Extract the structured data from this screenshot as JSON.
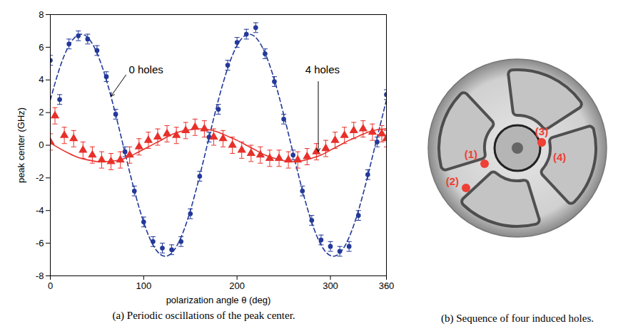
{
  "chart_data": {
    "type": "scatter",
    "caption": "(a) Periodic oscillations of the peak center.",
    "x_label": "polarization angle θ (deg)",
    "y_label": "peak center (GHz)",
    "xlim": [
      0,
      360
    ],
    "xticks": [
      0,
      100,
      200,
      300,
      360
    ],
    "ylim": [
      -8,
      8
    ],
    "yticks": [
      -8,
      -6,
      -4,
      -2,
      0,
      2,
      4,
      6,
      8
    ],
    "grid": false,
    "series": [
      {
        "name": "0 holes",
        "color": "#23399a",
        "marker": "circle",
        "line_style": "dashed",
        "x": [
          0,
          10,
          20,
          30,
          40,
          50,
          60,
          70,
          80,
          90,
          100,
          110,
          120,
          130,
          140,
          150,
          160,
          170,
          180,
          190,
          200,
          210,
          220,
          230,
          240,
          250,
          260,
          270,
          280,
          290,
          300,
          310,
          320,
          330,
          340,
          350,
          360
        ],
        "values": [
          5.2,
          2.8,
          6.2,
          6.7,
          6.5,
          5.8,
          4.2,
          1.9,
          -0.4,
          -2.8,
          -4.7,
          -5.9,
          -6.3,
          -6.4,
          -5.9,
          -4.2,
          -1.9,
          0.5,
          2.2,
          4.9,
          6.3,
          6.8,
          7.2,
          5.6,
          3.9,
          1.6,
          -0.6,
          -2.8,
          -4.6,
          -5.8,
          -6.2,
          -6.5,
          -6.2,
          -4.3,
          -1.8,
          0.2,
          3.1
        ],
        "errors": [
          0.3,
          0.3,
          0.3,
          0.3,
          0.3,
          0.3,
          0.3,
          0.3,
          0.3,
          0.3,
          0.3,
          0.3,
          0.3,
          0.3,
          0.3,
          0.3,
          0.3,
          0.3,
          0.3,
          0.3,
          0.3,
          0.3,
          0.3,
          0.3,
          0.3,
          0.3,
          0.3,
          0.3,
          0.3,
          0.3,
          0.3,
          0.3,
          0.3,
          0.3,
          0.3,
          0.3,
          0.3
        ],
        "fit_x": [
          0,
          10,
          20,
          30,
          40,
          50,
          60,
          70,
          80,
          90,
          100,
          110,
          120,
          130,
          140,
          150,
          160,
          170,
          180,
          190,
          200,
          210,
          220,
          230,
          240,
          250,
          260,
          270,
          280,
          290,
          300,
          310,
          320,
          330,
          340,
          350,
          360
        ],
        "fit_values": [
          2.77,
          4.72,
          6.11,
          6.76,
          6.6,
          5.64,
          4.0,
          1.87,
          -0.47,
          -2.77,
          -4.72,
          -6.11,
          -6.76,
          -6.6,
          -5.64,
          -4.0,
          -1.87,
          0.47,
          2.77,
          4.72,
          6.11,
          6.76,
          6.6,
          5.64,
          4.0,
          1.87,
          -0.47,
          -2.77,
          -4.72,
          -6.11,
          -6.76,
          -6.6,
          -5.64,
          -4.0,
          -1.87,
          0.47,
          2.77
        ],
        "label_x": 84,
        "label_y": 4.6,
        "arrow_from": [
          81,
          4.3
        ],
        "arrow_to": [
          65,
          3.0
        ]
      },
      {
        "name": "4 holes",
        "color": "#e8302a",
        "marker": "triangle",
        "line_style": "solid",
        "x": [
          0,
          5,
          15,
          25,
          35,
          45,
          55,
          65,
          75,
          85,
          95,
          105,
          115,
          125,
          135,
          145,
          155,
          165,
          175,
          185,
          195,
          205,
          215,
          225,
          235,
          245,
          255,
          265,
          275,
          285,
          295,
          305,
          315,
          325,
          335,
          345,
          355,
          360
        ],
        "values": [
          0.2,
          1.8,
          0.6,
          0.4,
          -0.3,
          -0.6,
          -0.9,
          -1.0,
          -0.9,
          -0.6,
          -0.1,
          0.3,
          0.5,
          0.7,
          0.6,
          0.9,
          1.1,
          1.0,
          0.5,
          0.4,
          0.0,
          -0.3,
          -0.5,
          -0.6,
          -0.8,
          -0.8,
          -0.9,
          -0.9,
          -0.7,
          -0.4,
          -0.2,
          0.3,
          0.6,
          0.9,
          1.0,
          0.8,
          0.7,
          0.4
        ],
        "errors": [
          0.5,
          0.5,
          0.5,
          0.5,
          0.5,
          0.5,
          0.5,
          0.5,
          0.5,
          0.5,
          0.5,
          0.5,
          0.5,
          0.5,
          0.5,
          0.5,
          0.5,
          0.5,
          0.5,
          0.5,
          0.5,
          0.5,
          0.5,
          0.5,
          0.5,
          0.5,
          0.5,
          0.5,
          0.5,
          0.5,
          0.5,
          0.5,
          0.5,
          0.5,
          0.5,
          0.5,
          0.5,
          0.5
        ],
        "fit_x": [
          0,
          10,
          20,
          30,
          40,
          50,
          60,
          70,
          80,
          90,
          100,
          110,
          120,
          130,
          140,
          150,
          160,
          170,
          180,
          190,
          200,
          210,
          220,
          230,
          240,
          250,
          260,
          270,
          280,
          290,
          300,
          310,
          320,
          330,
          340,
          350,
          360
        ],
        "fit_values": [
          0.15,
          -0.2,
          -0.5,
          -0.75,
          -0.9,
          -1.0,
          -1.0,
          -0.95,
          -0.8,
          -0.55,
          -0.25,
          0.05,
          0.35,
          0.65,
          0.85,
          0.95,
          1.0,
          0.95,
          0.8,
          0.55,
          0.3,
          0.0,
          -0.3,
          -0.6,
          -0.8,
          -0.95,
          -1.0,
          -0.95,
          -0.8,
          -0.6,
          -0.3,
          0.0,
          0.3,
          0.55,
          0.8,
          0.95,
          1.0
        ],
        "label_x": 273,
        "label_y": 4.6,
        "arrow_from": [
          287,
          3.9
        ],
        "arrow_to": [
          287,
          -0.4
        ]
      }
    ]
  },
  "diagram": {
    "caption": "(b) Sequence of four induced holes.",
    "holes": [
      "(1)",
      "(2)",
      "(3)",
      "(4)"
    ],
    "hole_color": "#ee4036"
  }
}
